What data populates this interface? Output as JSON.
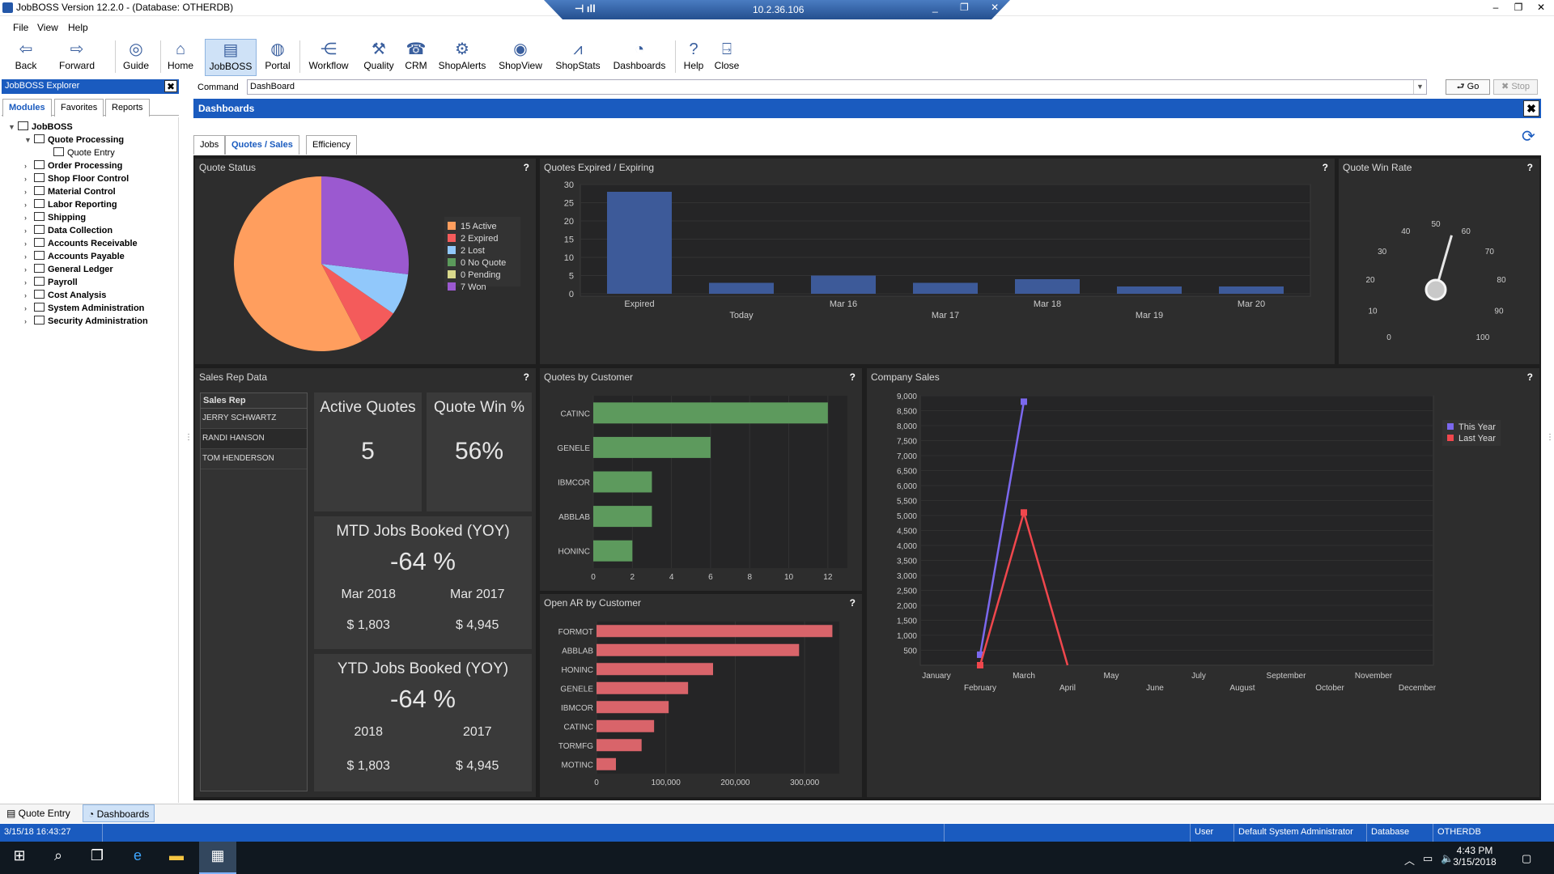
{
  "window": {
    "title": "JobBOSS Version 12.2.0 - (Database: OTHERDB)",
    "remote_ip": "10.2.36.106"
  },
  "menu": [
    "File",
    "View",
    "Help"
  ],
  "toolbar": {
    "items": [
      {
        "label": "Back",
        "icon": "arrow-left-icon"
      },
      {
        "label": "Forward",
        "icon": "arrow-right-icon"
      },
      {
        "label": "Guide",
        "icon": "guide-icon"
      },
      {
        "label": "Home",
        "icon": "home-icon"
      },
      {
        "label": "JobBOSS",
        "icon": "jobboss-icon",
        "active": true
      },
      {
        "label": "Portal",
        "icon": "globe-icon"
      },
      {
        "label": "Workflow",
        "icon": "workflow-icon"
      },
      {
        "label": "Quality",
        "icon": "quality-icon"
      },
      {
        "label": "CRM",
        "icon": "phone-icon"
      },
      {
        "label": "ShopAlerts",
        "icon": "alerts-icon"
      },
      {
        "label": "ShopView",
        "icon": "eye-icon"
      },
      {
        "label": "ShopStats",
        "icon": "stats-icon"
      },
      {
        "label": "Dashboards",
        "icon": "dashboard-icon"
      },
      {
        "label": "Help",
        "icon": "help-icon"
      },
      {
        "label": "Close",
        "icon": "close-door-icon"
      }
    ]
  },
  "explorer": {
    "title": "JobBOSS Explorer",
    "tabs": [
      "Modules",
      "Favorites",
      "Reports"
    ],
    "active_tab": "Modules",
    "root": "JobBOSS",
    "items": [
      {
        "label": "Quote Processing",
        "expanded": true
      },
      {
        "label": "Quote Entry",
        "child": true
      },
      {
        "label": "Order Processing"
      },
      {
        "label": "Shop Floor Control"
      },
      {
        "label": "Material Control"
      },
      {
        "label": "Labor Reporting"
      },
      {
        "label": "Shipping"
      },
      {
        "label": "Data Collection"
      },
      {
        "label": "Accounts Receivable"
      },
      {
        "label": "Accounts Payable"
      },
      {
        "label": "General Ledger"
      },
      {
        "label": "Payroll"
      },
      {
        "label": "Cost Analysis"
      },
      {
        "label": "System Administration"
      },
      {
        "label": "Security Administration"
      }
    ]
  },
  "command": {
    "label": "Command",
    "value": "DashBoard",
    "go": "Go",
    "stop": "Stop"
  },
  "dashboards": {
    "title": "Dashboards",
    "tabs": [
      "Jobs",
      "Quotes / Sales",
      "Efficiency"
    ],
    "active_tab": "Quotes / Sales"
  },
  "panels": {
    "quote_status": {
      "title": "Quote Status",
      "help": "?"
    },
    "quotes_expired": {
      "title": "Quotes Expired / Expiring",
      "help": "?"
    },
    "win_rate": {
      "title": "Quote Win Rate",
      "help": "?"
    },
    "sales_rep": {
      "title": "Sales Rep Data",
      "help": "?"
    },
    "by_customer": {
      "title": "Quotes by Customer",
      "help": "?"
    },
    "open_ar": {
      "title": "Open AR by Customer",
      "help": "?"
    },
    "company_sales": {
      "title": "Company Sales",
      "help": "?"
    }
  },
  "sales_rep": {
    "header": "Sales Rep",
    "reps": [
      "JERRY SCHWARTZ",
      "RANDI HANSON",
      "TOM HENDERSON"
    ],
    "active_quotes_label": "Active Quotes",
    "active_quotes": "5",
    "win_pct_label": "Quote Win %",
    "win_pct": "56%",
    "mtd_title": "MTD Jobs Booked (YOY)",
    "mtd_pct": "-64 %",
    "mtd_cur_label": "Mar 2018",
    "mtd_prev_label": "Mar 2017",
    "mtd_cur_value": "$ 1,803",
    "mtd_prev_value": "$ 4,945",
    "ytd_title": "YTD Jobs Booked (YOY)",
    "ytd_pct": "-64 %",
    "ytd_cur_label": "2018",
    "ytd_prev_label": "2017",
    "ytd_cur_value": "$ 1,803",
    "ytd_prev_value": "$ 4,945"
  },
  "bottom_tabs": [
    "Quote Entry",
    "Dashboards"
  ],
  "status": {
    "datetime": "3/15/18 16:43:27",
    "user_label": "User",
    "user": "Default System Administrator",
    "db_label": "Database",
    "db": "OTHERDB"
  },
  "taskbar": {
    "time": "4:43 PM",
    "date": "3/15/2018"
  },
  "colors": {
    "accent": "#1a5bbf",
    "dash_bg": "#1e1e1e",
    "panel_bg": "#2d2d2d"
  },
  "chart_data": [
    {
      "id": "quote_status",
      "type": "pie",
      "labels": [
        "Active",
        "Expired",
        "Lost",
        "No Quote",
        "Pending",
        "Won"
      ],
      "legend": [
        "15 Active",
        "2 Expired",
        "2 Lost",
        "0 No Quote",
        "0 Pending",
        "7 Won"
      ],
      "values": [
        15,
        2,
        2,
        0,
        0,
        7
      ],
      "colors": [
        "#ff9e5e",
        "#f45b5b",
        "#91c8fb",
        "#5b9a5b",
        "#d9d98c",
        "#9b59d0"
      ]
    },
    {
      "id": "quotes_expired",
      "type": "bar",
      "categories": [
        "Expired",
        "Today",
        "Mar 16",
        "Mar 17",
        "Mar 18",
        "Mar 19",
        "Mar 20"
      ],
      "values": [
        28,
        3,
        5,
        3,
        4,
        2,
        2
      ],
      "ylim": [
        0,
        30
      ],
      "yticks": [
        0,
        5,
        10,
        15,
        20,
        25,
        30
      ],
      "color": "#3d5a99"
    },
    {
      "id": "win_rate",
      "type": "gauge",
      "value": 56,
      "ticks": [
        0,
        10,
        20,
        30,
        40,
        50,
        60,
        70,
        80,
        90,
        100
      ]
    },
    {
      "id": "by_customer",
      "type": "bar",
      "orientation": "horizontal",
      "categories": [
        "CATINC",
        "GENELE",
        "IBMCOR",
        "ABBLAB",
        "HONINC"
      ],
      "values": [
        12,
        6,
        3,
        3,
        2
      ],
      "xlim": [
        0,
        13
      ],
      "xticks": [
        0,
        2,
        4,
        6,
        8,
        10,
        12
      ],
      "color": "#5d9a5d"
    },
    {
      "id": "open_ar",
      "type": "bar",
      "orientation": "horizontal",
      "categories": [
        "FORMOT",
        "ABBLAB",
        "HONINC",
        "GENELE",
        "IBMCOR",
        "CATINC",
        "TORMFG",
        "MOTINC"
      ],
      "values": [
        340000,
        292000,
        168000,
        132000,
        104000,
        83000,
        65000,
        28000
      ],
      "xlim": [
        0,
        350000
      ],
      "xticks": [
        "0",
        "100,000",
        "200,000",
        "300,000"
      ],
      "xtick_values": [
        0,
        100000,
        200000,
        300000
      ],
      "color": "#d9646a"
    },
    {
      "id": "company_sales",
      "type": "line",
      "categories": [
        "January",
        "February",
        "March",
        "April",
        "May",
        "June",
        "July",
        "August",
        "September",
        "October",
        "November",
        "December"
      ],
      "series": [
        {
          "name": "This Year",
          "values": [
            null,
            350,
            8800,
            null,
            null,
            null,
            null,
            null,
            null,
            null,
            null,
            null
          ],
          "color": "#7b68ee"
        },
        {
          "name": "Last Year",
          "values": [
            null,
            0,
            5100,
            0,
            null,
            null,
            null,
            null,
            null,
            null,
            null,
            null
          ],
          "color": "#f0474d"
        }
      ],
      "ylim": [
        0,
        9000
      ],
      "yticks": [
        "500",
        "1,000",
        "1,500",
        "2,000",
        "2,500",
        "3,000",
        "3,500",
        "4,000",
        "4,500",
        "5,000",
        "5,500",
        "6,000",
        "6,500",
        "7,000",
        "7,500",
        "8,000",
        "8,500",
        "9,000"
      ],
      "ytick_values": [
        500,
        1000,
        1500,
        2000,
        2500,
        3000,
        3500,
        4000,
        4500,
        5000,
        5500,
        6000,
        6500,
        7000,
        7500,
        8000,
        8500,
        9000
      ],
      "legend_position": "right"
    }
  ]
}
